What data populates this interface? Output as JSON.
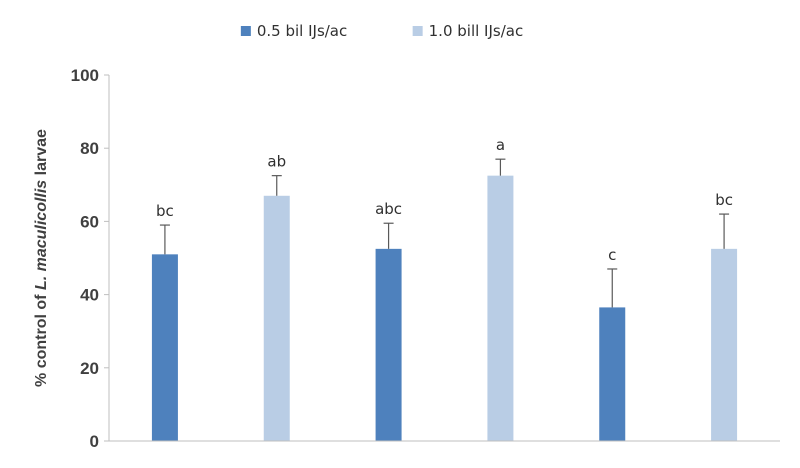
{
  "chart_data": {
    "type": "bar",
    "title": "",
    "xlabel": "",
    "ylabel_prefix": "% control of ",
    "ylabel_species": "L. maculicollis",
    "ylabel_suffix": " larvae",
    "ylim": [
      0,
      100
    ],
    "yticks": [
      0,
      20,
      40,
      60,
      80,
      100
    ],
    "grid": false,
    "legend_position": "top-center",
    "series_styles": [
      {
        "name": "0.5 bil IJs/ac",
        "color": "#4e81bd"
      },
      {
        "name": "1.0 bill IJs/ac",
        "color": "#b9cde5"
      }
    ],
    "bars": [
      {
        "series": 0,
        "value": 51,
        "error": 8,
        "label": "bc"
      },
      {
        "series": 1,
        "value": 67,
        "error": 5.5,
        "label": "ab"
      },
      {
        "series": 0,
        "value": 52.5,
        "error": 7,
        "label": "abc"
      },
      {
        "series": 1,
        "value": 72.5,
        "error": 4.5,
        "label": "a"
      },
      {
        "series": 0,
        "value": 36.5,
        "error": 10.5,
        "label": "c"
      },
      {
        "series": 1,
        "value": 52.5,
        "error": 9.5,
        "label": "bc"
      }
    ]
  }
}
